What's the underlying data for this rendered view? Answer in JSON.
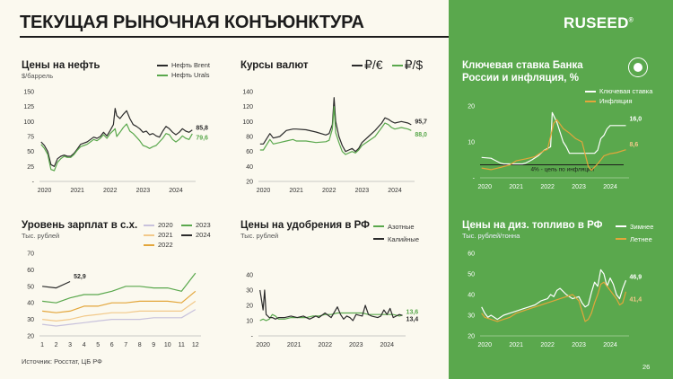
{
  "page": {
    "title": "ТЕКУЩАЯ РЫНОЧНАЯ КОНЪЮНКТУРА",
    "logo": "RUSEED",
    "logo_mark": "®",
    "footer": "Источник: Росстат, ЦБ РФ",
    "page_number": "26"
  },
  "colors": {
    "accent": "#5aa84d",
    "dark": "#2b2b2b",
    "orange": "#e3a63b",
    "lightgreen": "#a6d8a0",
    "lightorange": "#f2c98a",
    "lavender": "#c8c2dc",
    "white": "#ffffff"
  },
  "chart_data": [
    {
      "id": "oil",
      "type": "line",
      "title": "Цены на нефть",
      "unit": "$/баррель",
      "ylim": [
        0,
        150
      ],
      "yticks": [
        "-",
        "25",
        "50",
        "75",
        "100",
        "125",
        "150"
      ],
      "xticks": [
        "2020",
        "2021",
        "2022",
        "2023",
        "2024"
      ],
      "xlim": [
        2019.85,
        2024.6
      ],
      "series": [
        {
          "name": "Нефть Brent",
          "color": "#2b2b2b",
          "end_label": "85,8",
          "x": [
            2019.9,
            2020.0,
            2020.1,
            2020.2,
            2020.3,
            2020.4,
            2020.5,
            2020.6,
            2020.7,
            2020.8,
            2020.9,
            2021.0,
            2021.1,
            2021.2,
            2021.3,
            2021.4,
            2021.5,
            2021.6,
            2021.7,
            2021.8,
            2021.9,
            2022.0,
            2022.1,
            2022.15,
            2022.2,
            2022.3,
            2022.4,
            2022.5,
            2022.6,
            2022.7,
            2022.8,
            2022.9,
            2023.0,
            2023.1,
            2023.2,
            2023.3,
            2023.4,
            2023.5,
            2023.6,
            2023.7,
            2023.8,
            2023.9,
            2024.0,
            2024.1,
            2024.2,
            2024.3,
            2024.4,
            2024.5
          ],
          "y": [
            66,
            60,
            50,
            28,
            25,
            38,
            42,
            44,
            42,
            42,
            47,
            54,
            62,
            64,
            66,
            70,
            74,
            72,
            75,
            82,
            76,
            85,
            95,
            122,
            110,
            105,
            112,
            118,
            105,
            95,
            92,
            88,
            82,
            84,
            78,
            80,
            76,
            74,
            84,
            92,
            88,
            82,
            78,
            82,
            88,
            84,
            82,
            85.8
          ]
        },
        {
          "name": "Нефть Urals",
          "color": "#5aa84d",
          "end_label": "79,6",
          "x": [
            2019.9,
            2020.0,
            2020.1,
            2020.2,
            2020.3,
            2020.4,
            2020.5,
            2020.6,
            2020.7,
            2020.8,
            2020.9,
            2021.0,
            2021.1,
            2021.2,
            2021.3,
            2021.4,
            2021.5,
            2021.6,
            2021.7,
            2021.8,
            2021.9,
            2022.0,
            2022.1,
            2022.15,
            2022.2,
            2022.3,
            2022.4,
            2022.5,
            2022.6,
            2022.7,
            2022.8,
            2022.9,
            2023.0,
            2023.1,
            2023.2,
            2023.3,
            2023.4,
            2023.5,
            2023.6,
            2023.7,
            2023.8,
            2023.9,
            2024.0,
            2024.1,
            2024.2,
            2024.3,
            2024.4,
            2024.5
          ],
          "y": [
            62,
            55,
            45,
            20,
            18,
            32,
            38,
            42,
            40,
            40,
            45,
            52,
            58,
            60,
            62,
            66,
            70,
            68,
            72,
            78,
            72,
            80,
            85,
            88,
            75,
            82,
            90,
            96,
            84,
            80,
            74,
            68,
            60,
            58,
            55,
            58,
            60,
            66,
            72,
            80,
            78,
            70,
            66,
            70,
            76,
            72,
            70,
            79.6
          ]
        }
      ]
    },
    {
      "id": "fx",
      "type": "line",
      "title": "Курсы валют",
      "ylim": [
        20,
        140
      ],
      "yticks": [
        "20",
        "40",
        "60",
        "80",
        "100",
        "120",
        "140"
      ],
      "xticks": [
        "2020",
        "2021",
        "2022",
        "2023",
        "2024"
      ],
      "xlim": [
        2019.85,
        2024.6
      ],
      "legend": [
        {
          "sym": "₽/€"
        },
        {
          "sym": "₽/$"
        }
      ],
      "series": [
        {
          "name": "₽/€",
          "color": "#2b2b2b",
          "end_label": "95,7",
          "x": [
            2019.9,
            2020.0,
            2020.2,
            2020.3,
            2020.5,
            2020.7,
            2020.9,
            2021.0,
            2021.3,
            2021.6,
            2021.9,
            2022.0,
            2022.1,
            2022.15,
            2022.2,
            2022.3,
            2022.4,
            2022.5,
            2022.6,
            2022.7,
            2022.8,
            2022.9,
            2023.0,
            2023.2,
            2023.4,
            2023.6,
            2023.7,
            2023.8,
            2023.9,
            2024.0,
            2024.2,
            2024.4,
            2024.5
          ],
          "y": [
            70,
            70,
            84,
            78,
            80,
            88,
            90,
            90,
            89,
            86,
            82,
            84,
            96,
            132,
            100,
            80,
            68,
            60,
            62,
            64,
            60,
            64,
            72,
            80,
            88,
            98,
            105,
            103,
            100,
            98,
            100,
            98,
            95.7
          ]
        },
        {
          "name": "₽/$",
          "color": "#5aa84d",
          "end_label": "88,0",
          "x": [
            2019.9,
            2020.0,
            2020.2,
            2020.3,
            2020.5,
            2020.7,
            2020.9,
            2021.0,
            2021.3,
            2021.6,
            2021.9,
            2022.0,
            2022.1,
            2022.15,
            2022.2,
            2022.3,
            2022.4,
            2022.5,
            2022.6,
            2022.7,
            2022.8,
            2022.9,
            2023.0,
            2023.2,
            2023.4,
            2023.6,
            2023.7,
            2023.8,
            2023.9,
            2024.0,
            2024.2,
            2024.4,
            2024.5
          ],
          "y": [
            62,
            62,
            76,
            70,
            72,
            74,
            76,
            74,
            74,
            72,
            73,
            75,
            90,
            120,
            85,
            72,
            60,
            56,
            58,
            60,
            58,
            62,
            68,
            74,
            80,
            92,
            98,
            96,
            92,
            90,
            92,
            90,
            88.0
          ]
        }
      ]
    },
    {
      "id": "keyrate",
      "type": "line",
      "title": "Ключевая ставка Банка России и инфляция, %",
      "ylim": [
        0,
        22
      ],
      "yticks": [
        "-",
        "10",
        "20"
      ],
      "xticks": [
        "2020",
        "2021",
        "2022",
        "2023",
        "2024"
      ],
      "xlim": [
        2019.85,
        2024.6
      ],
      "target_line": {
        "y": 4,
        "label": "4% - цель по инфляции"
      },
      "series": [
        {
          "name": "Ключевая ставка",
          "color": "#ffffff",
          "end_label": "16,0",
          "x": [
            2019.9,
            2020.2,
            2020.3,
            2020.5,
            2020.6,
            2021.2,
            2021.3,
            2021.5,
            2021.7,
            2021.9,
            2022.1,
            2022.15,
            2022.3,
            2022.4,
            2022.5,
            2022.6,
            2022.7,
            2023.5,
            2023.6,
            2023.7,
            2023.8,
            2023.9,
            2024.0,
            2024.5
          ],
          "y": [
            6.25,
            6.0,
            5.5,
            4.5,
            4.25,
            4.25,
            4.5,
            5.5,
            6.75,
            8.5,
            9.5,
            20,
            17,
            14,
            11,
            9.5,
            7.5,
            7.5,
            8.5,
            12,
            13,
            15,
            16,
            16
          ]
        },
        {
          "name": "Инфляция",
          "color": "#e3a63b",
          "end_label": "8,6",
          "x": [
            2019.9,
            2020.2,
            2020.5,
            2020.8,
            2021.0,
            2021.3,
            2021.6,
            2021.9,
            2022.0,
            2022.2,
            2022.3,
            2022.5,
            2022.7,
            2022.9,
            2023.1,
            2023.3,
            2023.4,
            2023.6,
            2023.8,
            2024.0,
            2024.2,
            2024.5
          ],
          "y": [
            3.0,
            2.5,
            3.2,
            4.0,
            5.2,
            5.8,
            6.5,
            8.4,
            8.7,
            16.7,
            17.8,
            15.1,
            13.7,
            12.0,
            11.0,
            3.5,
            2.3,
            4.3,
            6.7,
            7.4,
            7.7,
            8.6
          ]
        }
      ]
    },
    {
      "id": "wages",
      "type": "line",
      "title": "Уровень зарплат в с.х.",
      "unit": "Тыс. рублей",
      "ylim": [
        20,
        70
      ],
      "yticks": [
        "20",
        "30",
        "40",
        "50",
        "60",
        "70"
      ],
      "xticks": [
        "1",
        "2",
        "3",
        "4",
        "5",
        "6",
        "7",
        "8",
        "9",
        "10",
        "11",
        "12"
      ],
      "xlim": [
        0.8,
        12.4
      ],
      "series": [
        {
          "name": "2020",
          "color": "#c8c2dc",
          "x": [
            1,
            2,
            3,
            4,
            5,
            6,
            7,
            8,
            9,
            10,
            11,
            12
          ],
          "y": [
            27,
            26,
            27,
            28,
            29,
            30,
            30,
            30,
            31,
            31,
            31,
            36
          ]
        },
        {
          "name": "2021",
          "color": "#f2c98a",
          "x": [
            1,
            2,
            3,
            4,
            5,
            6,
            7,
            8,
            9,
            10,
            11,
            12
          ],
          "y": [
            30,
            29,
            30,
            32,
            33,
            34,
            34,
            35,
            35,
            35,
            35,
            41
          ]
        },
        {
          "name": "2022",
          "color": "#e3a63b",
          "x": [
            1,
            2,
            3,
            4,
            5,
            6,
            7,
            8,
            9,
            10,
            11,
            12
          ],
          "y": [
            35,
            34,
            35,
            38,
            38,
            40,
            40,
            41,
            41,
            41,
            40,
            47
          ]
        },
        {
          "name": "2023",
          "color": "#5aa84d",
          "x": [
            1,
            2,
            3,
            4,
            5,
            6,
            7,
            8,
            9,
            10,
            11,
            12
          ],
          "y": [
            41,
            40,
            43,
            45,
            45,
            47,
            50,
            50,
            49,
            49,
            47,
            58
          ]
        },
        {
          "name": "2024",
          "color": "#2b2b2b",
          "end_label": "52,9",
          "x": [
            1,
            2,
            3
          ],
          "y": [
            50,
            49,
            52.9
          ]
        }
      ]
    },
    {
      "id": "fert",
      "type": "line",
      "title": "Цены на удобрения в РФ",
      "unit": "Тыс. рублей",
      "ylim": [
        0,
        40
      ],
      "yticks": [
        "-",
        "10",
        "20",
        "30",
        "40"
      ],
      "xticks": [
        "2020",
        "2021",
        "2022",
        "2023",
        "2024"
      ],
      "xlim": [
        2019.85,
        2024.6
      ],
      "series": [
        {
          "name": "Азотные",
          "color": "#5aa84d",
          "end_label": "13,6",
          "x": [
            2019.9,
            2020.0,
            2020.1,
            2020.2,
            2020.3,
            2020.4,
            2020.5,
            2020.7,
            2020.9,
            2021.0,
            2021.2,
            2021.4,
            2021.6,
            2021.8,
            2022.0,
            2022.2,
            2022.4,
            2022.6,
            2022.8,
            2023.0,
            2023.2,
            2023.4,
            2023.6,
            2023.8,
            2024.0,
            2024.2,
            2024.4,
            2024.5
          ],
          "y": [
            10,
            11,
            10,
            11,
            14,
            13,
            11,
            11,
            12,
            12,
            12,
            12,
            13,
            13,
            14,
            14,
            15,
            15,
            15,
            15,
            15,
            14,
            14,
            14,
            14,
            14,
            13,
            13.6
          ]
        },
        {
          "name": "Калийные",
          "color": "#2b2b2b",
          "end_label": "13,4",
          "x": [
            2019.9,
            2020.0,
            2020.05,
            2020.1,
            2020.2,
            2020.3,
            2020.4,
            2020.5,
            2020.7,
            2020.9,
            2021.1,
            2021.3,
            2021.5,
            2021.7,
            2021.8,
            2022.0,
            2022.2,
            2022.4,
            2022.5,
            2022.6,
            2022.7,
            2022.8,
            2022.9,
            2023.0,
            2023.2,
            2023.3,
            2023.4,
            2023.5,
            2023.7,
            2023.8,
            2023.9,
            2024.0,
            2024.1,
            2024.2,
            2024.3,
            2024.4,
            2024.5
          ],
          "y": [
            30,
            17,
            30,
            14,
            12,
            12,
            11,
            12,
            12,
            13,
            12,
            13,
            11,
            13,
            12,
            15,
            12,
            19,
            14,
            11,
            13,
            12,
            10,
            14,
            13,
            20,
            14,
            13,
            12,
            13,
            17,
            14,
            18,
            12,
            13,
            14,
            13.4
          ]
        }
      ]
    },
    {
      "id": "diesel",
      "type": "line",
      "title": "Цены на диз. топливо в РФ",
      "unit": "Тыс. рублей/тонна",
      "ylim": [
        20,
        60
      ],
      "yticks": [
        "20",
        "30",
        "40",
        "50",
        "60"
      ],
      "xticks": [
        "2020",
        "2021",
        "2022",
        "2023",
        "2024"
      ],
      "xlim": [
        2019.85,
        2024.6
      ],
      "series": [
        {
          "name": "Зимнее",
          "color": "#ffffff",
          "end_label": "46,9",
          "x": [
            2019.9,
            2020.0,
            2020.1,
            2020.2,
            2020.3,
            2020.4,
            2020.6,
            2020.8,
            2021.0,
            2021.2,
            2021.4,
            2021.6,
            2021.8,
            2022.0,
            2022.1,
            2022.2,
            2022.3,
            2022.4,
            2022.6,
            2022.8,
            2023.0,
            2023.1,
            2023.2,
            2023.3,
            2023.4,
            2023.5,
            2023.6,
            2023.7,
            2023.8,
            2023.9,
            2024.0,
            2024.1,
            2024.2,
            2024.3,
            2024.4,
            2024.5
          ],
          "y": [
            34,
            31,
            29,
            30,
            29,
            28,
            30,
            31,
            32,
            33,
            34,
            35,
            37,
            38,
            40,
            39,
            42,
            43,
            40,
            38,
            39,
            36,
            34,
            35,
            41,
            46,
            44,
            52,
            50,
            44,
            48,
            45,
            40,
            38,
            43,
            46.9
          ]
        },
        {
          "name": "Летнее",
          "color": "#e3a63b",
          "end_label": "41,4",
          "x": [
            2019.9,
            2020.0,
            2020.2,
            2020.4,
            2020.6,
            2020.8,
            2021.0,
            2021.2,
            2021.4,
            2021.6,
            2021.8,
            2022.0,
            2022.2,
            2022.4,
            2022.6,
            2022.8,
            2023.0,
            2023.1,
            2023.2,
            2023.3,
            2023.4,
            2023.5,
            2023.6,
            2023.7,
            2023.8,
            2023.9,
            2024.0,
            2024.2,
            2024.3,
            2024.4,
            2024.5
          ],
          "y": [
            31,
            29,
            28,
            27,
            28,
            29,
            31,
            32,
            33,
            34,
            35,
            36,
            37,
            38,
            39,
            40,
            37,
            32,
            27,
            28,
            31,
            36,
            40,
            45,
            46,
            44,
            42,
            38,
            35,
            36,
            41.4
          ]
        }
      ]
    }
  ]
}
